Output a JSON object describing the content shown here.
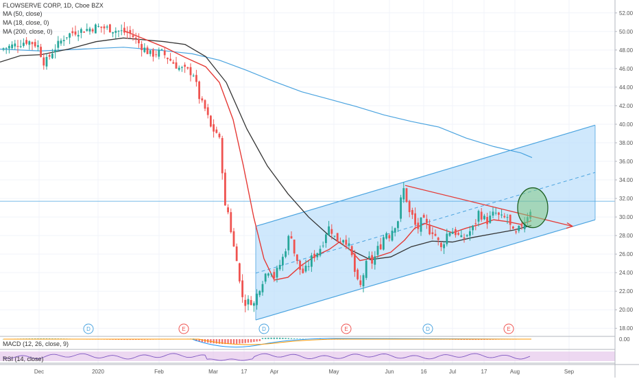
{
  "header": {
    "title": "FLOWSERVE CORP, 1D, Cboe BZX",
    "indicators": [
      "MA (50, close)",
      "MA (18, close, 0)",
      "MA (200, close, 0)"
    ]
  },
  "panes": {
    "macd_label": "MACD (12, 26, close, 9)",
    "macd_value": "0.00",
    "rsi_label": "RSI (14, close)"
  },
  "colors": {
    "up": "#26a69a",
    "down": "#ef5350",
    "ma18": "#e53935",
    "ma50": "#333333",
    "ma200": "#4aa3df",
    "channel_fill": "#bbdefb",
    "channel_line": "#4aa3df",
    "trend_line": "#e53935",
    "circle_fill": "#81c784",
    "circle_stroke": "#1b5e20",
    "rsi_fill": "#e1bee7",
    "rsi_line": "#7e57c2"
  },
  "chart_data": {
    "type": "candlestick",
    "title": "FLOWSERVE CORP, 1D, Cboe BZX",
    "ylim": [
      17.5,
      52.8
    ],
    "price_ticks": [
      "52.00",
      "50.00",
      "48.00",
      "46.00",
      "44.00",
      "42.00",
      "40.00",
      "38.00",
      "36.00",
      "34.00",
      "32.00",
      "30.00",
      "28.00",
      "26.00",
      "24.00",
      "22.00",
      "20.00",
      "18.00"
    ],
    "x_ticks": [
      "Dec",
      "2020",
      "Feb",
      "Mar",
      "17",
      "Apr",
      "May",
      "Jun",
      "16",
      "Jul",
      "17",
      "Aug",
      "Sep"
    ],
    "series": [
      {
        "name": "MA (50, close)"
      },
      {
        "name": "MA (18, close, 0)"
      },
      {
        "name": "MA (200, close, 0)"
      }
    ],
    "horizontal_line": 31.7,
    "events": [
      {
        "label": "D",
        "x": 0.5
      },
      {
        "label": "E",
        "x": 0.28
      },
      {
        "label": "D",
        "x": 0.4
      },
      {
        "label": "E",
        "x": 0.53
      },
      {
        "label": "D",
        "x": 0.65
      },
      {
        "label": "E",
        "x": 0.78
      }
    ]
  }
}
